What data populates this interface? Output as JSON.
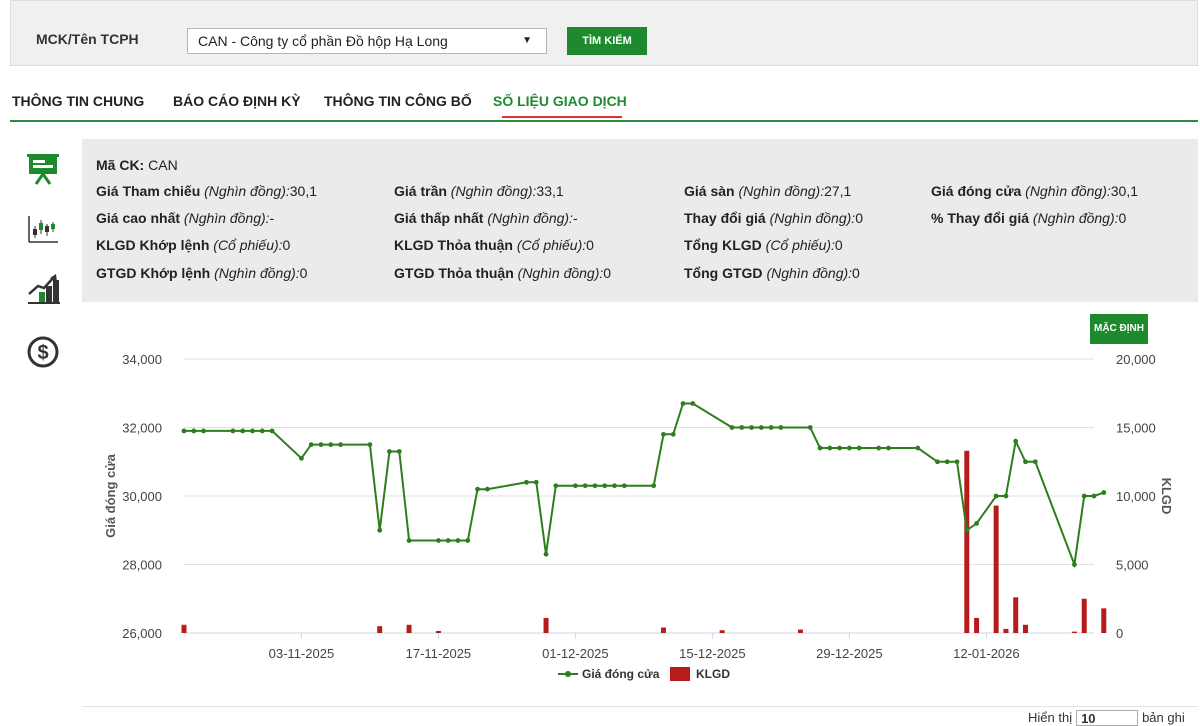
{
  "search": {
    "label": "MCK/Tên TCPH",
    "selected_company": "CAN - Công ty cổ phần Đồ hộp Hạ Long",
    "search_button": "TÌM KIẾM"
  },
  "tabs": [
    {
      "label": "THÔNG TIN CHUNG"
    },
    {
      "label": "BÁO CÁO ĐỊNH KỲ"
    },
    {
      "label": "THÔNG TIN CÔNG BỐ"
    },
    {
      "label": "SỐ LIỆU GIAO DỊCH"
    }
  ],
  "sidebar": {
    "icons": [
      "presentation-icon",
      "candlestick-chart-icon",
      "growth-chart-icon",
      "dollar-circle-icon"
    ]
  },
  "info": {
    "ma_ck": {
      "label": "Mã CK:",
      "value": "CAN"
    },
    "items": [
      {
        "label": "Giá Tham chiếu",
        "unit": "(Nghìn đồng):",
        "value": "30,1"
      },
      {
        "label": "Giá trần",
        "unit": "(Nghìn đồng):",
        "value": "33,1"
      },
      {
        "label": "Giá sàn",
        "unit": "(Nghìn đồng):",
        "value": "27,1"
      },
      {
        "label": "Giá đóng cửa",
        "unit": "(Nghìn đồng):",
        "value": "30,1"
      },
      {
        "label": "Giá cao nhất",
        "unit": "(Nghìn đồng):",
        "value": "-"
      },
      {
        "label": "Giá thấp nhất",
        "unit": "(Nghìn đồng):",
        "value": "-"
      },
      {
        "label": "Thay đổi giá",
        "unit": "(Nghìn đồng):",
        "value": "0"
      },
      {
        "label": "% Thay đổi giá",
        "unit": "(Nghìn đồng):",
        "value": "0"
      },
      {
        "label": "KLGD Khớp lệnh",
        "unit": "(Cổ phiếu):",
        "value": "0"
      },
      {
        "label": "KLGD Thỏa thuận",
        "unit": "(Cổ phiếu):",
        "value": "0"
      },
      {
        "label": "Tổng KLGD",
        "unit": "(Cổ phiếu):",
        "value": "0"
      },
      {
        "label": "GTGD Khớp lệnh",
        "unit": "(Nghìn đồng):",
        "value": "0"
      },
      {
        "label": "GTGD Thỏa thuận",
        "unit": "(Nghìn đồng):",
        "value": "0"
      },
      {
        "label": "Tổng GTGD",
        "unit": "(Nghìn đồng):",
        "value": "0"
      }
    ]
  },
  "chart_controls": {
    "default_button": "MẶC ĐỊNH"
  },
  "footer": {
    "show_label": "Hiển thị",
    "page_size": "10",
    "records_label": "bản ghi"
  },
  "chart_data": {
    "type": "line+bar",
    "title": "",
    "left_ylabel": "Giá đóng cửa",
    "right_ylabel": "KLGD",
    "left_ylim": [
      26000,
      34000
    ],
    "right_ylim": [
      0,
      20000
    ],
    "left_ticks": [
      "26,000",
      "28,000",
      "30,000",
      "32,000",
      "34,000"
    ],
    "right_ticks": [
      "0",
      "5,000",
      "10,000",
      "15,000",
      "20,000"
    ],
    "x_range": [
      "2025-10-22",
      "2026-01-23"
    ],
    "x_ticks": [
      "03-11-2025",
      "17-11-2025",
      "01-12-2025",
      "15-12-2025",
      "29-12-2025",
      "12-01-2026"
    ],
    "grid": "horizontal",
    "legend_position": "bottom-center",
    "series": [
      {
        "name": "Giá đóng cửa",
        "kind": "line",
        "color": "#2e7d1f",
        "points": [
          [
            "2025-10-22",
            31900
          ],
          [
            "2025-10-23",
            31900
          ],
          [
            "2025-10-24",
            31900
          ],
          [
            "2025-10-27",
            31900
          ],
          [
            "2025-10-28",
            31900
          ],
          [
            "2025-10-29",
            31900
          ],
          [
            "2025-10-30",
            31900
          ],
          [
            "2025-10-31",
            31900
          ],
          [
            "2025-11-03",
            31100
          ],
          [
            "2025-11-04",
            31500
          ],
          [
            "2025-11-05",
            31500
          ],
          [
            "2025-11-06",
            31500
          ],
          [
            "2025-11-07",
            31500
          ],
          [
            "2025-11-10",
            31500
          ],
          [
            "2025-11-11",
            29000
          ],
          [
            "2025-11-12",
            31300
          ],
          [
            "2025-11-13",
            31300
          ],
          [
            "2025-11-14",
            28700
          ],
          [
            "2025-11-17",
            28700
          ],
          [
            "2025-11-18",
            28700
          ],
          [
            "2025-11-19",
            28700
          ],
          [
            "2025-11-20",
            28700
          ],
          [
            "2025-11-21",
            30200
          ],
          [
            "2025-11-22",
            30200
          ],
          [
            "2025-11-26",
            30400
          ],
          [
            "2025-11-27",
            30400
          ],
          [
            "2025-11-28",
            28300
          ],
          [
            "2025-11-29",
            30300
          ],
          [
            "2025-12-01",
            30300
          ],
          [
            "2025-12-02",
            30300
          ],
          [
            "2025-12-03",
            30300
          ],
          [
            "2025-12-04",
            30300
          ],
          [
            "2025-12-05",
            30300
          ],
          [
            "2025-12-06",
            30300
          ],
          [
            "2025-12-09",
            30300
          ],
          [
            "2025-12-10",
            31800
          ],
          [
            "2025-12-11",
            31800
          ],
          [
            "2025-12-12",
            32700
          ],
          [
            "2025-12-13",
            32700
          ],
          [
            "2025-12-17",
            32000
          ],
          [
            "2025-12-18",
            32000
          ],
          [
            "2025-12-19",
            32000
          ],
          [
            "2025-12-20",
            32000
          ],
          [
            "2025-12-21",
            32000
          ],
          [
            "2025-12-22",
            32000
          ],
          [
            "2025-12-25",
            32000
          ],
          [
            "2025-12-26",
            31400
          ],
          [
            "2025-12-27",
            31400
          ],
          [
            "2025-12-28",
            31400
          ],
          [
            "2025-12-29",
            31400
          ],
          [
            "2025-12-30",
            31400
          ],
          [
            "2026-01-01",
            31400
          ],
          [
            "2026-01-02",
            31400
          ],
          [
            "2026-01-05",
            31400
          ],
          [
            "2026-01-07",
            31000
          ],
          [
            "2026-01-08",
            31000
          ],
          [
            "2026-01-09",
            31000
          ],
          [
            "2026-01-10",
            29000
          ],
          [
            "2026-01-11",
            29200
          ],
          [
            "2026-01-13",
            30000
          ],
          [
            "2026-01-14",
            30000
          ],
          [
            "2026-01-15",
            31600
          ],
          [
            "2026-01-16",
            31000
          ],
          [
            "2026-01-17",
            31000
          ],
          [
            "2026-01-21",
            28000
          ],
          [
            "2026-01-22",
            30000
          ],
          [
            "2026-01-23",
            30000
          ],
          [
            "2026-01-24",
            30100
          ]
        ]
      },
      {
        "name": "KLGD",
        "kind": "bar",
        "color": "#b71c1c",
        "points": [
          [
            "2025-10-22",
            600
          ],
          [
            "2025-11-11",
            500
          ],
          [
            "2025-11-14",
            600
          ],
          [
            "2025-11-17",
            150
          ],
          [
            "2025-11-28",
            1100
          ],
          [
            "2025-12-10",
            400
          ],
          [
            "2025-12-16",
            200
          ],
          [
            "2025-12-24",
            250
          ],
          [
            "2026-01-10",
            13300
          ],
          [
            "2026-01-11",
            1100
          ],
          [
            "2026-01-13",
            9300
          ],
          [
            "2026-01-14",
            300
          ],
          [
            "2026-01-15",
            2600
          ],
          [
            "2026-01-16",
            600
          ],
          [
            "2026-01-21",
            100
          ],
          [
            "2026-01-22",
            2500
          ],
          [
            "2026-01-24",
            1800
          ]
        ]
      }
    ]
  }
}
